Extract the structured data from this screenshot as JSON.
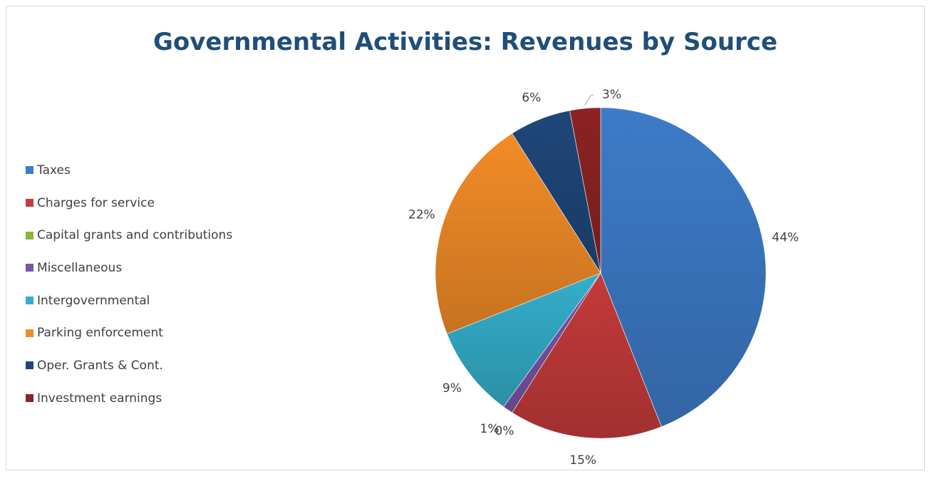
{
  "chart_data": {
    "type": "pie",
    "title": "Governmental Activities: Revenues by Source",
    "legend_position": "left",
    "categories": [
      "Taxes",
      "Charges for service",
      "Capital grants and contributions",
      "Miscellaneous",
      "Intergovernmental",
      "Parking enforcement",
      "Oper. Grants & Cont.",
      "Investment earnings"
    ],
    "values": [
      44,
      15,
      0,
      1,
      9,
      22,
      6,
      3
    ],
    "labels": [
      "44%",
      "15%",
      "0%",
      "1%",
      "9%",
      "22%",
      "6%",
      "3%"
    ],
    "colors": [
      "#3d7bc8",
      "#c43a3a",
      "#8fb43a",
      "#7b55a8",
      "#34aecb",
      "#f28c28",
      "#1f477a",
      "#8c2323"
    ]
  }
}
